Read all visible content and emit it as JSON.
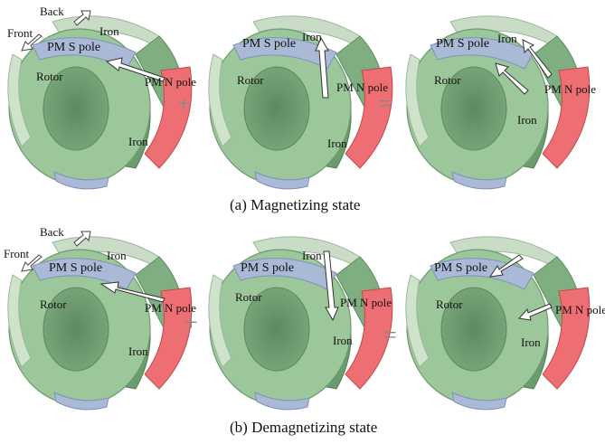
{
  "labels": {
    "back": "Back",
    "front": "Front",
    "iron": "Iron",
    "rotor": "Rotor",
    "pm_s_pole": "PM S pole",
    "pm_n_pole": "PM N pole"
  },
  "operators": {
    "plus": "+",
    "equals": "="
  },
  "captions": {
    "magnetizing": "(a)  Magnetizing state",
    "demagnetizing": "(b)  Demagnetizing state"
  },
  "colors": {
    "rotor_green": "#9cc79a",
    "iron_green": "#7fae80",
    "pm_s_blue": "#a9b9d6",
    "pm_n_red": "#ee6f73",
    "arrow_fill": "#ffffff"
  }
}
